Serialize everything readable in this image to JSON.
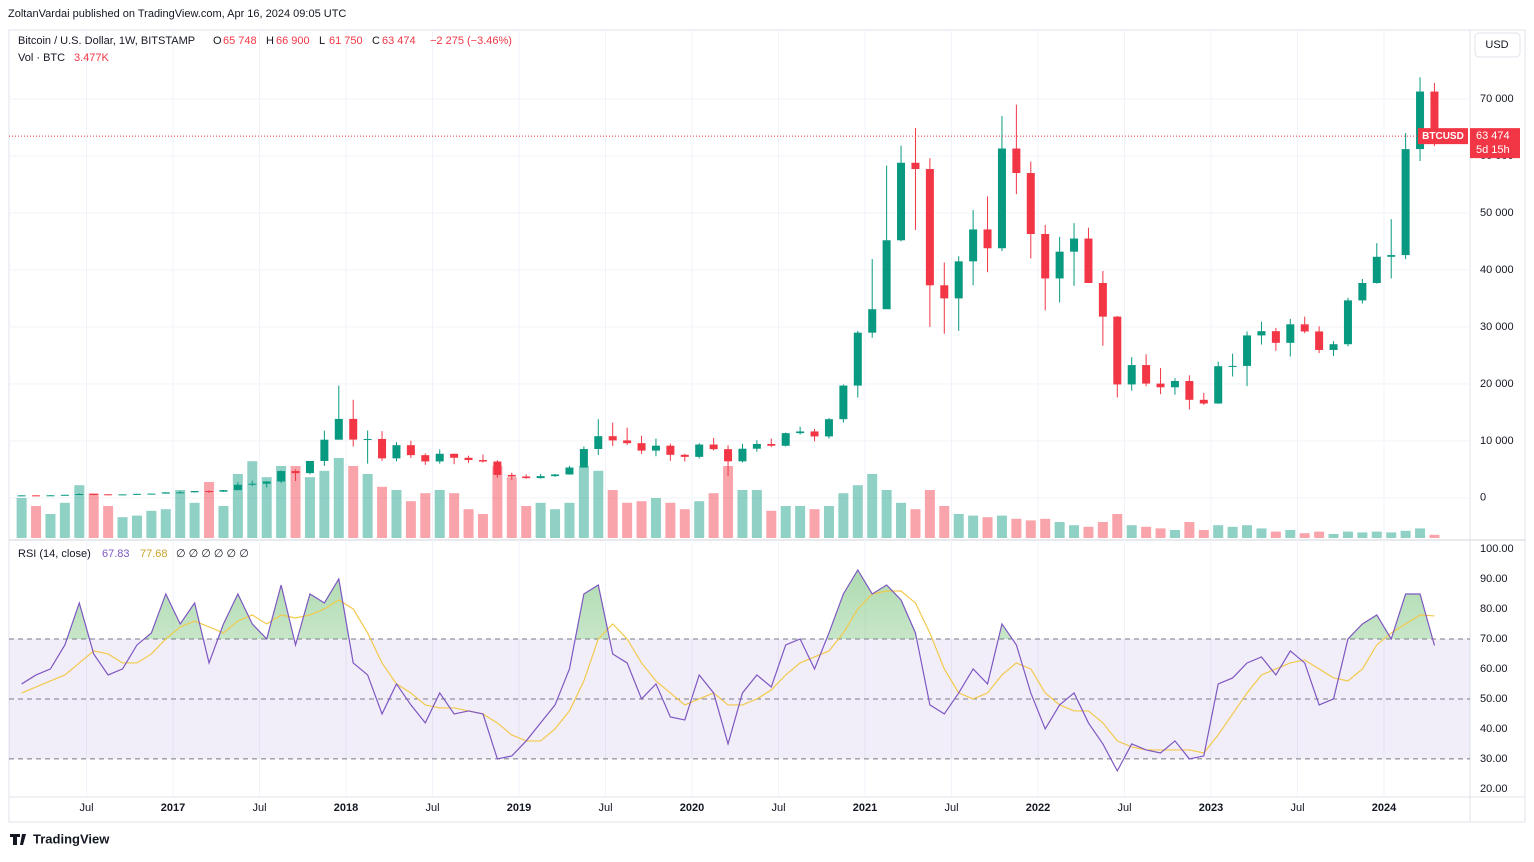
{
  "header": {
    "publisher": "ZoltanVardai published on TradingView.com, Apr 16, 2024 09:05 UTC",
    "symbol": "Bitcoin / U.S. Dollar, 1W, BITSTAMP",
    "ohlc": [
      {
        "label": "O",
        "value": "65 748"
      },
      {
        "label": "H",
        "value": "66 900"
      },
      {
        "label": "L",
        "value": "61 750"
      },
      {
        "label": "C",
        "value": "63 474"
      }
    ],
    "change": "−2 275 (−3.46%)",
    "volume_label": "Vol · BTC",
    "volume_value": "3.477K",
    "currency": "USD",
    "brand": "TradingView"
  },
  "chart_data": [
    {
      "type": "candlestick",
      "up_color": "#089981",
      "down_color": "#f23645",
      "grid": true,
      "x": [
        "2016-02",
        "2016-03",
        "2016-04",
        "2016-05",
        "2016-06",
        "2016-07",
        "2016-08",
        "2016-09",
        "2016-10",
        "2016-11",
        "2016-12",
        "2017-01",
        "2017-02",
        "2017-03",
        "2017-04",
        "2017-05",
        "2017-06",
        "2017-07",
        "2017-08",
        "2017-09",
        "2017-10",
        "2017-11",
        "2017-12",
        "2018-01",
        "2018-02",
        "2018-03",
        "2018-04",
        "2018-05",
        "2018-06",
        "2018-07",
        "2018-08",
        "2018-09",
        "2018-10",
        "2018-11",
        "2018-12",
        "2019-01",
        "2019-02",
        "2019-03",
        "2019-04",
        "2019-05",
        "2019-06",
        "2019-07",
        "2019-08",
        "2019-09",
        "2019-10",
        "2019-11",
        "2019-12",
        "2020-01",
        "2020-02",
        "2020-03",
        "2020-04",
        "2020-05",
        "2020-06",
        "2020-07",
        "2020-08",
        "2020-09",
        "2020-10",
        "2020-11",
        "2020-12",
        "2021-01",
        "2021-02",
        "2021-03",
        "2021-04",
        "2021-05",
        "2021-06",
        "2021-07",
        "2021-08",
        "2021-09",
        "2021-10",
        "2021-11",
        "2021-12",
        "2022-01",
        "2022-02",
        "2022-03",
        "2022-04",
        "2022-05",
        "2022-06",
        "2022-07",
        "2022-08",
        "2022-09",
        "2022-10",
        "2022-11",
        "2022-12",
        "2023-01",
        "2023-02",
        "2023-03",
        "2023-04",
        "2023-05",
        "2023-06",
        "2023-07",
        "2023-08",
        "2023-09",
        "2023-10",
        "2023-11",
        "2023-12",
        "2024-01",
        "2024-02",
        "2024-03",
        "2024-04"
      ],
      "open": [
        370,
        437,
        416,
        448,
        531,
        673,
        624,
        575,
        609,
        700,
        742,
        963,
        970,
        1190,
        1080,
        1350,
        2300,
        2480,
        2870,
        4700,
        4340,
        6470,
        10200,
        13850,
        10220,
        10330,
        6930,
        9240,
        7490,
        6390,
        7730,
        7030,
        6630,
        6370,
        4020,
        3740,
        3460,
        3810,
        4100,
        5320,
        8570,
        10820,
        10080,
        9590,
        8290,
        9150,
        7550,
        7190,
        9350,
        8540,
        6410,
        8620,
        9450,
        9140,
        11350,
        11650,
        10780,
        13800,
        19700,
        28990,
        33100,
        45200,
        58800,
        57700,
        37300,
        35000,
        41500,
        47100,
        43800,
        61300,
        57000,
        46300,
        38500,
        43200,
        45500,
        37700,
        31800,
        19900,
        23300,
        20050,
        19400,
        20500,
        17200,
        16550,
        23100,
        23150,
        28500,
        29250,
        27200,
        30450,
        29200,
        25950,
        26960,
        34650,
        37700,
        42300,
        42600,
        61200,
        71300
      ],
      "high": [
        440,
        440,
        470,
        550,
        780,
        680,
        630,
        615,
        720,
        760,
        980,
        1150,
        1210,
        1300,
        1360,
        2750,
        3000,
        2950,
        4800,
        4980,
        6470,
        11800,
        19700,
        17200,
        11800,
        11700,
        9760,
        10000,
        7800,
        8500,
        7770,
        7400,
        7600,
        6600,
        4400,
        4100,
        4200,
        4200,
        5600,
        9000,
        13800,
        13200,
        12300,
        10900,
        10400,
        9530,
        7740,
        9580,
        10500,
        9200,
        9500,
        10100,
        10400,
        11450,
        12480,
        12100,
        14000,
        19900,
        29300,
        41900,
        58300,
        61800,
        64900,
        59600,
        41300,
        42400,
        50500,
        52900,
        67000,
        69000,
        59000,
        47900,
        45800,
        48200,
        47400,
        39800,
        31900,
        24700,
        25200,
        22800,
        21000,
        21500,
        18400,
        23900,
        25300,
        29200,
        30900,
        29800,
        31400,
        31800,
        30100,
        27500,
        35100,
        38400,
        44700,
        48900,
        64000,
        73800,
        72800
      ],
      "low": [
        370,
        400,
        412,
        440,
        520,
        470,
        470,
        570,
        600,
        675,
        740,
        750,
        940,
        890,
        1060,
        1350,
        2100,
        1830,
        2600,
        2950,
        4120,
        5600,
        10400,
        9000,
        6000,
        6500,
        6400,
        7000,
        5800,
        6000,
        5900,
        6100,
        6200,
        3500,
        3150,
        3350,
        3400,
        3700,
        4050,
        5300,
        7500,
        9100,
        9300,
        7700,
        7300,
        6500,
        6400,
        6900,
        8300,
        3850,
        6200,
        8100,
        8900,
        9000,
        11100,
        9900,
        10400,
        13200,
        17600,
        28100,
        33200,
        45000,
        47000,
        30000,
        28800,
        29300,
        37300,
        39600,
        43300,
        53300,
        42000,
        32900,
        34300,
        37200,
        37700,
        26700,
        17600,
        18800,
        19600,
        18200,
        18100,
        15500,
        16300,
        16500,
        21300,
        19600,
        26900,
        25800,
        24800,
        28900,
        25400,
        24900,
        26600,
        34100,
        37600,
        38500,
        41900,
        59100,
        61750
      ],
      "close": [
        437,
        416,
        448,
        531,
        673,
        624,
        575,
        609,
        700,
        742,
        963,
        970,
        1190,
        1080,
        1350,
        2300,
        2480,
        2870,
        4700,
        4340,
        6470,
        10200,
        13850,
        10220,
        10330,
        6930,
        9240,
        7490,
        6390,
        7730,
        7030,
        6630,
        6370,
        4020,
        3740,
        3460,
        3810,
        4100,
        5320,
        8570,
        10820,
        10080,
        9590,
        8290,
        9150,
        7550,
        7190,
        9350,
        8540,
        6410,
        8620,
        9450,
        9140,
        11350,
        11650,
        10780,
        13800,
        19700,
        28990,
        33100,
        45200,
        58800,
        57700,
        37300,
        35000,
        41500,
        47100,
        43800,
        61300,
        57000,
        46300,
        38500,
        43200,
        45500,
        37700,
        31800,
        19900,
        23300,
        20050,
        19400,
        20500,
        17200,
        16550,
        23100,
        23150,
        28500,
        29250,
        27200,
        30450,
        29200,
        25950,
        26960,
        34650,
        37700,
        42300,
        42600,
        61200,
        71300,
        63474
      ],
      "volume": [
        250000,
        200000,
        150000,
        220000,
        330000,
        280000,
        200000,
        130000,
        140000,
        170000,
        180000,
        300000,
        220000,
        350000,
        200000,
        400000,
        480000,
        380000,
        450000,
        450000,
        380000,
        420000,
        500000,
        450000,
        400000,
        320000,
        300000,
        230000,
        280000,
        300000,
        280000,
        180000,
        150000,
        450000,
        380000,
        200000,
        220000,
        180000,
        220000,
        450000,
        420000,
        300000,
        220000,
        230000,
        250000,
        220000,
        180000,
        230000,
        280000,
        450000,
        300000,
        300000,
        170000,
        200000,
        200000,
        180000,
        200000,
        280000,
        330000,
        400000,
        300000,
        220000,
        180000,
        300000,
        200000,
        150000,
        140000,
        130000,
        140000,
        120000,
        110000,
        120000,
        100000,
        80000,
        70000,
        100000,
        150000,
        80000,
        70000,
        60000,
        50000,
        100000,
        50000,
        80000,
        70000,
        80000,
        60000,
        40000,
        50000,
        30000,
        40000,
        25000,
        40000,
        35000,
        40000,
        35000,
        45000,
        60000,
        20000
      ],
      "ylim": [
        -7400,
        82100
      ],
      "yticks": [
        {
          "value": 0,
          "label": "0"
        },
        {
          "value": 10000,
          "label": "10 000"
        },
        {
          "value": 20000,
          "label": "20 000"
        },
        {
          "value": 30000,
          "label": "30 000"
        },
        {
          "value": 40000,
          "label": "40 000"
        },
        {
          "value": 50000,
          "label": "50 000"
        },
        {
          "value": 60000,
          "label": "60 000"
        },
        {
          "value": 70000,
          "label": "70 000"
        }
      ],
      "xticks": [
        {
          "value": "2016-07",
          "label": "Jul"
        },
        {
          "value": "2017-01",
          "label": "2017"
        },
        {
          "value": "2017-07",
          "label": "Jul"
        },
        {
          "value": "2018-01",
          "label": "2018"
        },
        {
          "value": "2018-07",
          "label": "Jul"
        },
        {
          "value": "2019-01",
          "label": "2019"
        },
        {
          "value": "2019-07",
          "label": "Jul"
        },
        {
          "value": "2020-01",
          "label": "2020"
        },
        {
          "value": "2020-07",
          "label": "Jul"
        },
        {
          "value": "2021-01",
          "label": "2021"
        },
        {
          "value": "2021-07",
          "label": "Jul"
        },
        {
          "value": "2022-01",
          "label": "2022"
        },
        {
          "value": "2022-07",
          "label": "Jul"
        },
        {
          "value": "2023-01",
          "label": "2023"
        },
        {
          "value": "2023-07",
          "label": "Jul"
        },
        {
          "value": "2024-01",
          "label": "2024"
        }
      ],
      "last_price": {
        "name": "BTCUSD",
        "value": 63474,
        "label": "63 474",
        "countdown": "5d 15h"
      }
    },
    {
      "type": "line",
      "title": "RSI (14, close)",
      "band": [
        30,
        70
      ],
      "midline": 50,
      "band_color": "#7e57c2",
      "overbought_color": "#4caf50",
      "x": [
        "2016-02",
        "2016-03",
        "2016-04",
        "2016-05",
        "2016-06",
        "2016-07",
        "2016-08",
        "2016-09",
        "2016-10",
        "2016-11",
        "2016-12",
        "2017-01",
        "2017-02",
        "2017-03",
        "2017-04",
        "2017-05",
        "2017-06",
        "2017-07",
        "2017-08",
        "2017-09",
        "2017-10",
        "2017-11",
        "2017-12",
        "2018-01",
        "2018-02",
        "2018-03",
        "2018-04",
        "2018-05",
        "2018-06",
        "2018-07",
        "2018-08",
        "2018-09",
        "2018-10",
        "2018-11",
        "2018-12",
        "2019-01",
        "2019-02",
        "2019-03",
        "2019-04",
        "2019-05",
        "2019-06",
        "2019-07",
        "2019-08",
        "2019-09",
        "2019-10",
        "2019-11",
        "2019-12",
        "2020-01",
        "2020-02",
        "2020-03",
        "2020-04",
        "2020-05",
        "2020-06",
        "2020-07",
        "2020-08",
        "2020-09",
        "2020-10",
        "2020-11",
        "2020-12",
        "2021-01",
        "2021-02",
        "2021-03",
        "2021-04",
        "2021-05",
        "2021-06",
        "2021-07",
        "2021-08",
        "2021-09",
        "2021-10",
        "2021-11",
        "2021-12",
        "2022-01",
        "2022-02",
        "2022-03",
        "2022-04",
        "2022-05",
        "2022-06",
        "2022-07",
        "2022-08",
        "2022-09",
        "2022-10",
        "2022-11",
        "2022-12",
        "2023-01",
        "2023-02",
        "2023-03",
        "2023-04",
        "2023-05",
        "2023-06",
        "2023-07",
        "2023-08",
        "2023-09",
        "2023-10",
        "2023-11",
        "2023-12",
        "2024-01",
        "2024-02",
        "2024-03",
        "2024-04"
      ],
      "series": [
        {
          "color": "#7e57c2",
          "values": [
            55,
            58,
            60,
            68,
            82,
            65,
            58,
            60,
            68,
            72,
            85,
            75,
            82,
            62,
            75,
            85,
            75,
            70,
            88,
            68,
            85,
            82,
            90,
            62,
            58,
            45,
            55,
            48,
            42,
            52,
            45,
            46,
            45,
            30,
            31,
            36,
            42,
            48,
            60,
            85,
            88,
            65,
            62,
            50,
            55,
            44,
            43,
            58,
            52,
            35,
            52,
            58,
            54,
            68,
            70,
            60,
            72,
            85,
            93,
            85,
            88,
            83,
            72,
            48,
            45,
            52,
            60,
            55,
            75,
            68,
            52,
            40,
            48,
            52,
            42,
            35,
            26,
            35,
            33,
            32,
            36,
            30,
            31,
            55,
            57,
            62,
            64,
            58,
            66,
            62,
            48,
            50,
            70,
            75,
            78,
            70,
            85,
            85,
            67.83
          ]
        },
        {
          "color": "#f2c94c",
          "values": [
            52,
            54,
            56,
            58,
            62,
            66,
            65,
            62,
            62,
            65,
            70,
            74,
            76,
            74,
            72,
            76,
            78,
            75,
            78,
            77,
            78,
            80,
            83,
            80,
            72,
            62,
            55,
            52,
            48,
            47,
            47,
            46,
            45,
            42,
            38,
            36,
            36,
            40,
            46,
            56,
            70,
            75,
            70,
            62,
            56,
            52,
            48,
            50,
            52,
            48,
            48,
            50,
            53,
            58,
            62,
            64,
            66,
            72,
            80,
            85,
            86,
            86,
            82,
            72,
            60,
            52,
            50,
            52,
            58,
            62,
            60,
            52,
            48,
            46,
            46,
            42,
            36,
            34,
            33,
            33,
            33,
            33,
            32,
            38,
            45,
            52,
            58,
            60,
            62,
            63,
            60,
            57,
            56,
            60,
            68,
            72,
            75,
            78,
            77.68
          ]
        }
      ],
      "ylim": [
        17.3,
        103
      ],
      "yticks": [
        {
          "value": 20,
          "label": "20.00"
        },
        {
          "value": 30,
          "label": "30.00"
        },
        {
          "value": 40,
          "label": "40.00"
        },
        {
          "value": 50,
          "label": "50.00"
        },
        {
          "value": 60,
          "label": "60.00"
        },
        {
          "value": 70,
          "label": "70.00"
        },
        {
          "value": 80,
          "label": "80.00"
        },
        {
          "value": 90,
          "label": "90.00"
        },
        {
          "value": 100,
          "label": "100.00"
        }
      ],
      "icons": "∅ ∅ ∅ ∅ ∅ ∅"
    }
  ]
}
